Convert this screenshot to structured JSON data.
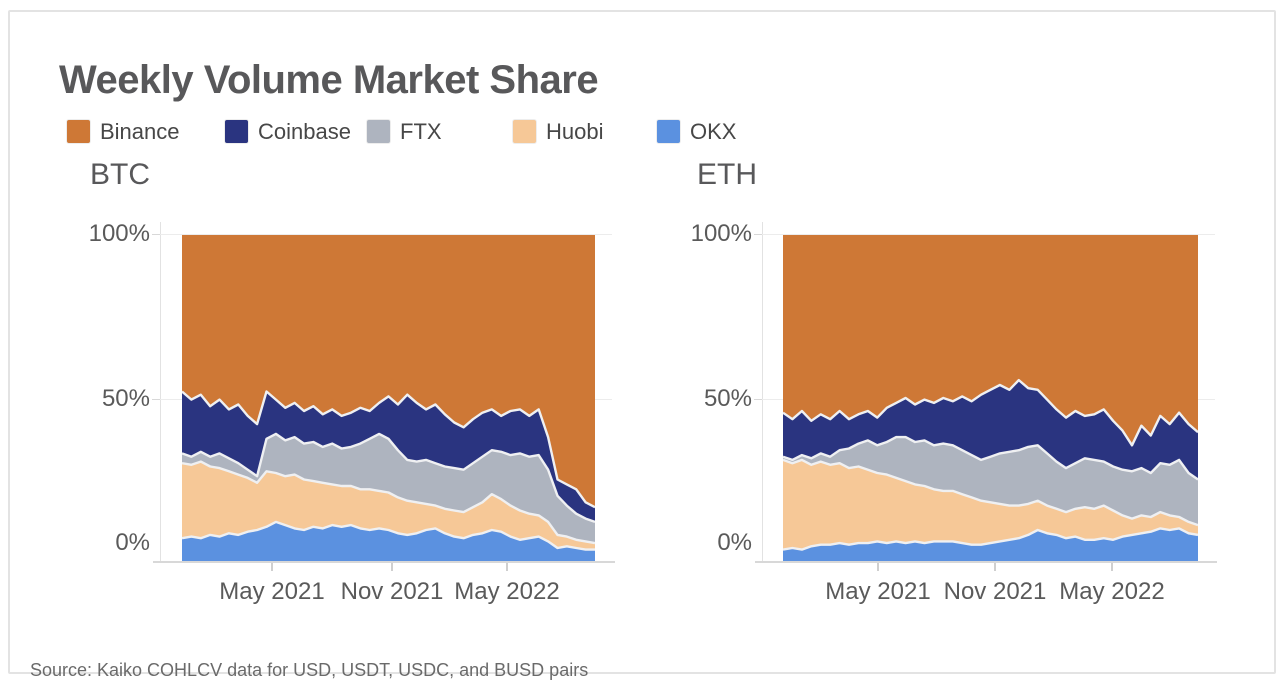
{
  "title": "Weekly Volume Market Share",
  "source": "Source: Kaiko COHLCV data for USD, USDT, USDC, and BUSD pairs",
  "legend": [
    {
      "label": "Binance",
      "color": "#CE7836"
    },
    {
      "label": "Coinbase",
      "color": "#2A3480"
    },
    {
      "label": "FTX",
      "color": "#AEB4BF"
    },
    {
      "label": "Huobi",
      "color": "#F6C897"
    },
    {
      "label": "OKX",
      "color": "#5B91E0"
    }
  ],
  "colors": {
    "boundary_stroke": "#EFF0F2",
    "title_text": "#58585A",
    "axis_text": "#5A5A5A",
    "gridline": "#ECECEC",
    "card_border": "#E3E3E3"
  },
  "chart_data": [
    {
      "type": "area",
      "stacked": true,
      "units": "percent of weekly volume",
      "title": "BTC",
      "ylim": [
        0,
        100
      ],
      "y_ticks": [
        "100%",
        "50%",
        "0%"
      ],
      "x_ticks": [
        "May 2021",
        "Nov 2021",
        "May 2022"
      ],
      "x_range": [
        "Jan 2021",
        "Sep 2022"
      ],
      "points_note": "45 evenly spaced weekly samples, bottom-to-top stack order",
      "series": [
        {
          "name": "OKX",
          "color": "#5B91E0",
          "values": [
            7,
            7.5,
            7,
            8,
            7.5,
            8.5,
            8,
            9,
            9.5,
            10.5,
            12,
            11,
            10,
            9.5,
            10.5,
            10,
            11,
            10.5,
            11,
            10,
            9.5,
            10,
            9.5,
            8.5,
            8,
            8.5,
            9.5,
            10,
            8.5,
            7.5,
            7,
            8,
            8.5,
            9.5,
            9,
            7.5,
            6.5,
            7,
            7.5,
            6,
            4,
            4.5,
            4,
            3.5,
            3.5
          ]
        },
        {
          "name": "Huobi",
          "color": "#F6C897",
          "values": [
            23,
            22,
            23.5,
            21,
            21,
            19,
            18.5,
            16.5,
            14.5,
            17,
            15,
            15,
            16.5,
            15.5,
            14,
            14,
            12.5,
            12.5,
            12,
            12,
            12.5,
            11.5,
            11.5,
            11,
            10.5,
            9.5,
            8,
            7,
            7.5,
            8,
            8,
            8.5,
            9.5,
            11,
            10,
            9.5,
            9,
            7.5,
            6.5,
            6,
            4,
            3,
            2.5,
            2.5,
            2
          ]
        },
        {
          "name": "FTX",
          "color": "#AEB4BF",
          "values": [
            3,
            2.5,
            3,
            3,
            4.5,
            4,
            3.5,
            2.5,
            2,
            10,
            12,
            11,
            11.5,
            11,
            12,
            11,
            12.5,
            11.5,
            12,
            14,
            15.5,
            17.5,
            16.5,
            14.5,
            12.5,
            12.5,
            13.5,
            13,
            13,
            13,
            13,
            13.5,
            14,
            13.5,
            14.5,
            15.5,
            17.5,
            17.5,
            18.5,
            16,
            12,
            9.5,
            8,
            7,
            6.5
          ]
        },
        {
          "name": "Coinbase",
          "color": "#2A3480",
          "values": [
            19,
            17.5,
            17.5,
            15.5,
            16.5,
            15,
            18,
            16.5,
            16,
            14.5,
            10.5,
            10,
            10.5,
            10,
            11,
            10,
            10.5,
            10,
            10.5,
            11,
            8.5,
            9.5,
            13,
            14,
            20,
            18,
            15.5,
            18,
            16,
            14,
            13,
            13.5,
            13.5,
            12.5,
            11,
            13.5,
            13.5,
            12.5,
            14,
            10,
            5,
            6.5,
            7.5,
            5,
            4.5
          ]
        },
        {
          "name": "Binance",
          "color": "#CE7836",
          "values": [
            48,
            50.5,
            49,
            52.5,
            50.5,
            53.5,
            52,
            55.5,
            58,
            48,
            50.5,
            53,
            51.5,
            54,
            52.5,
            55,
            53.5,
            55.5,
            54.5,
            53,
            54,
            51.5,
            49.5,
            52,
            49,
            51.5,
            53.5,
            52,
            55,
            57.5,
            59,
            56.5,
            54.5,
            53.5,
            55.5,
            54,
            53.5,
            55.5,
            53.5,
            62,
            75,
            76.5,
            78,
            82,
            83.5
          ]
        }
      ]
    },
    {
      "type": "area",
      "stacked": true,
      "units": "percent of weekly volume",
      "title": "ETH",
      "ylim": [
        0,
        100
      ],
      "y_ticks": [
        "100%",
        "50%",
        "0%"
      ],
      "x_ticks": [
        "May 2021",
        "Nov 2021",
        "May 2022"
      ],
      "x_range": [
        "Jan 2021",
        "Sep 2022"
      ],
      "points_note": "45 evenly spaced weekly samples, bottom-to-top stack order",
      "series": [
        {
          "name": "OKX",
          "color": "#5B91E0",
          "values": [
            3.5,
            4,
            3.5,
            4.5,
            5,
            5,
            5.5,
            5,
            5.5,
            5.5,
            6,
            5.5,
            6,
            5.5,
            6,
            5.5,
            6,
            6,
            6,
            5.5,
            5,
            5,
            5.5,
            6,
            6.5,
            7,
            8,
            9.5,
            8.5,
            8,
            7,
            7.5,
            6.5,
            6.5,
            7,
            6.5,
            7.5,
            8,
            8.5,
            9,
            10,
            9.5,
            10,
            8.5,
            8
          ]
        },
        {
          "name": "Huobi",
          "color": "#F6C897",
          "values": [
            27.5,
            26,
            27.5,
            25,
            25.5,
            24.5,
            24.5,
            23.5,
            23.5,
            22.5,
            21,
            21,
            19.5,
            19,
            17.5,
            17.5,
            16,
            15.5,
            15.5,
            15,
            14.5,
            13.5,
            12.5,
            11.5,
            10.5,
            10,
            9.5,
            9,
            8.5,
            8,
            8,
            8.5,
            10,
            9.5,
            10,
            9,
            6.5,
            5,
            5.5,
            4.5,
            5,
            4.5,
            3.5,
            3.5,
            3
          ]
        },
        {
          "name": "FTX",
          "color": "#AEB4BF",
          "values": [
            1,
            1,
            1.5,
            2,
            2.5,
            2.5,
            4,
            6,
            7,
            9,
            8.5,
            10,
            12.5,
            13.5,
            13,
            14,
            13.5,
            14.5,
            14,
            13.5,
            13,
            12.5,
            14,
            15.5,
            16.5,
            17,
            17.5,
            17,
            16,
            14.5,
            13.5,
            14,
            15,
            15,
            13.5,
            13.5,
            14,
            14.5,
            14.5,
            13.5,
            15,
            15.5,
            17.5,
            15,
            14
          ]
        },
        {
          "name": "Coinbase",
          "color": "#2A3480",
          "values": [
            13.5,
            12.5,
            13.5,
            11.5,
            12,
            11.5,
            12,
            9,
            9,
            9,
            8.5,
            10.5,
            10.5,
            12,
            11.5,
            12.5,
            13,
            14,
            13.5,
            16.5,
            16.5,
            20,
            20.5,
            21,
            19,
            21.5,
            18,
            17,
            16.5,
            16,
            15.5,
            16,
            13,
            14,
            16,
            14,
            12,
            8,
            13,
            11.5,
            14.5,
            12.5,
            14.5,
            15,
            14.5
          ]
        },
        {
          "name": "Binance",
          "color": "#CE7836",
          "values": [
            54.5,
            56.5,
            54,
            57,
            55,
            56.5,
            54,
            56.5,
            55,
            54,
            56,
            53,
            51.5,
            50,
            52,
            50.5,
            51.5,
            50,
            51,
            49.5,
            51,
            49,
            47.5,
            46,
            47.5,
            44.5,
            47,
            47.5,
            50.5,
            53.5,
            56,
            54,
            55.5,
            55,
            53.5,
            57,
            60,
            64.5,
            58.5,
            61.5,
            55.5,
            58,
            54.5,
            58,
            60.5
          ]
        }
      ]
    }
  ]
}
